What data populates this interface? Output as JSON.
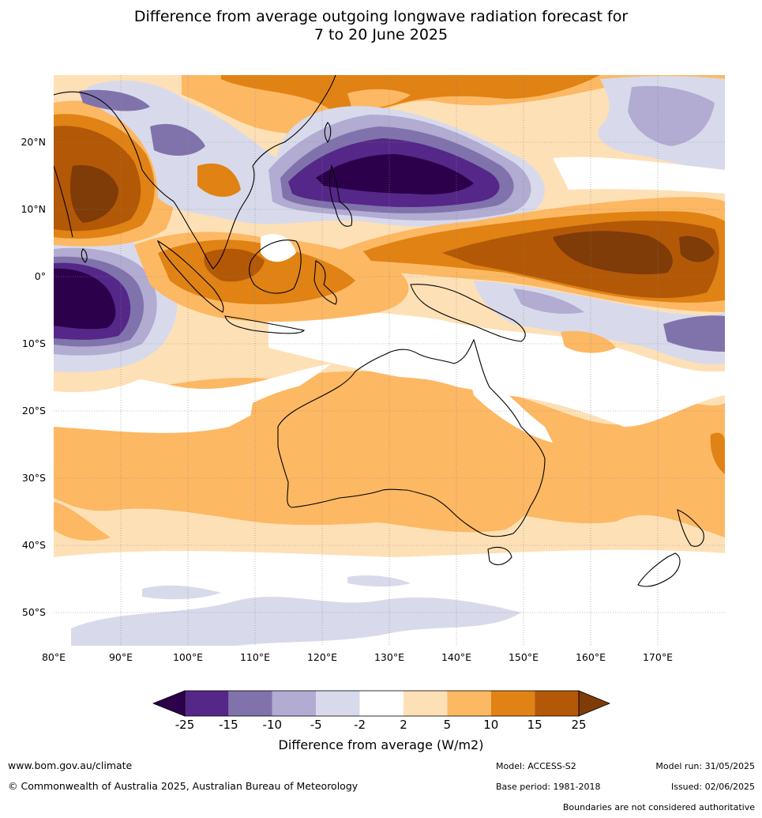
{
  "title_line1": "Difference from average outgoing longwave radiation forecast for",
  "title_line2": "7 to 20 June 2025",
  "map": {
    "lon_range": [
      80,
      180
    ],
    "lat_range": [
      -55,
      30
    ],
    "lat_labels": [
      "20°N",
      "10°N",
      "0°",
      "10°S",
      "20°S",
      "30°S",
      "40°S",
      "50°S"
    ],
    "lon_labels": [
      "80°E",
      "90°E",
      "100°E",
      "110°E",
      "120°E",
      "130°E",
      "140°E",
      "150°E",
      "160°E",
      "170°E"
    ]
  },
  "legend": {
    "title": "Difference from average (W/m2)",
    "ticks": [
      "-25",
      "-15",
      "-10",
      "-5",
      "-2",
      "2",
      "5",
      "10",
      "15",
      "25"
    ],
    "colors": {
      "under": "#2d004b",
      "c1": "#542788",
      "c2": "#8073ac",
      "c3": "#b2abd2",
      "c4": "#d8daeb",
      "c5": "#ffffff",
      "c6": "#fee0b6",
      "c7": "#fdb863",
      "c8": "#e08214",
      "c9": "#b35806",
      "over": "#7f3b08"
    }
  },
  "footer": {
    "website": "www.bom.gov.au/climate",
    "copyright": "© Commonwealth of Australia 2025, Australian Bureau of Meteorology",
    "model": "Model: ACCESS-S2",
    "base_period": "Base period: 1981-2018",
    "model_run": "Model run: 31/05/2025",
    "issued": "Issued: 02/06/2025",
    "disclaimer": "Boundaries are not considered authoritative"
  }
}
